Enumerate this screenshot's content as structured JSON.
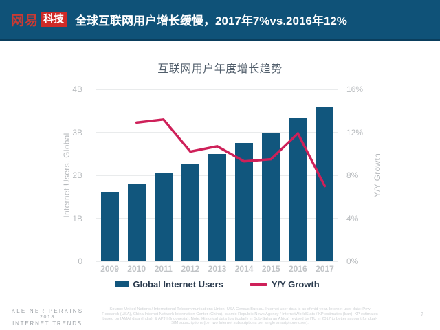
{
  "header": {
    "logo_brand": "网易",
    "logo_sub": "科技",
    "title": "全球互联网用户增长缓慢，2017年7%vs.2016年12%"
  },
  "chart_data": {
    "type": "bar",
    "title": "互联网用户年度增长趋势",
    "categories": [
      "2009",
      "2010",
      "2011",
      "2012",
      "2013",
      "2014",
      "2015",
      "2016",
      "2017"
    ],
    "series": [
      {
        "name": "Global Internet Users",
        "type": "bar",
        "axis": "left",
        "unit": "B",
        "color": "#11567d",
        "values": [
          1.6,
          1.8,
          2.05,
          2.25,
          2.5,
          2.75,
          3.0,
          3.35,
          3.6
        ]
      },
      {
        "name": "Y/Y Growth",
        "type": "line",
        "axis": "right",
        "unit": "%",
        "color": "#ce2059",
        "start_category": "2010",
        "values": [
          12.9,
          13.2,
          10.2,
          10.7,
          9.3,
          9.5,
          11.9,
          7.0
        ]
      }
    ],
    "left_axis": {
      "label": "Internet Users, Global",
      "ticks": [
        "0",
        "1B",
        "2B",
        "3B",
        "4B"
      ],
      "range": [
        0,
        4
      ]
    },
    "right_axis": {
      "label": "Y/Y Growth",
      "ticks": [
        "0%",
        "4%",
        "8%",
        "12%",
        "16%"
      ],
      "range": [
        0,
        16
      ]
    },
    "grid": true,
    "legend_position": "bottom"
  },
  "footer": {
    "brand_line1": "KLEINER PERKINS",
    "brand_line2": "2018",
    "brand_line3": "INTERNET TRENDS",
    "source_text": "Source: United Nations / International Telecommunications Union, USA Census Bureau. Internet user data is as of mid-year. Internet user data: Pew Research (USA), China Internet Network Information Center (China), Islamic Republic News Agency / InternetWorldStats / KP estimates (Iran), KP estimates based on IAMAI data (India), & APJII (Indonesia). Note: Historical data (particularly in Sub-Saharan Africa) revised by ITU in 2017 to better account for dual-SIM subscriptions (i.e. two Internet subscriptions per single smartphone user).",
    "page_number": "7"
  },
  "colors": {
    "header_bg": "#0f5278",
    "header_border": "#0a3e5d",
    "logo_red": "#cf2b28",
    "bar": "#11567d",
    "line": "#ce2059",
    "gridline": "#e9ebec",
    "axis_text": "#b9bcbf",
    "legend_text": "#2b3b4e"
  }
}
